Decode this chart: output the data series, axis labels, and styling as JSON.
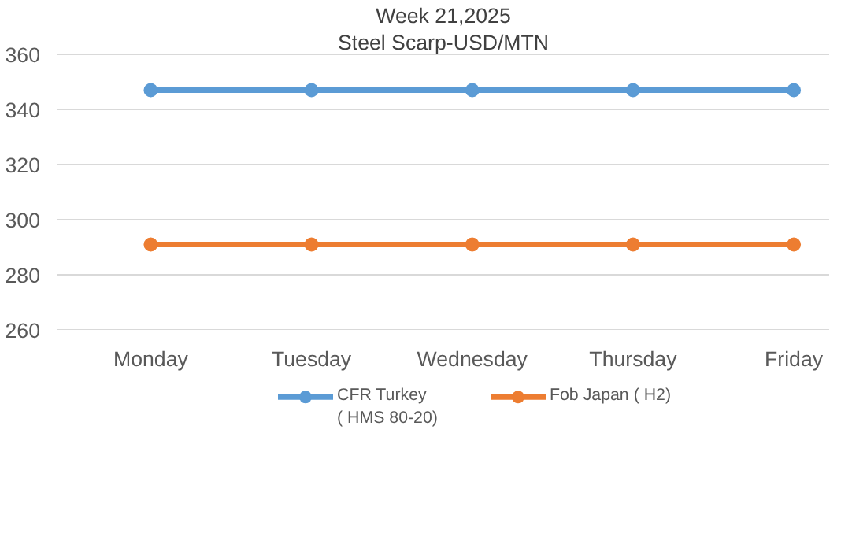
{
  "chart_data": {
    "type": "line",
    "title": "Week 21,2025",
    "subtitle": "Steel Scarp-USD/MTN",
    "categories": [
      "Monday",
      "Tuesday",
      "Wednesday",
      "Thursday",
      "Friday"
    ],
    "series": [
      {
        "name": "CFR Turkey\n( HMS 80-20)",
        "color": "#5b9bd5",
        "values": [
          347,
          347,
          347,
          347,
          347
        ]
      },
      {
        "name": "Fob Japan ( H2)",
        "color": "#ed7d31",
        "values": [
          291,
          291,
          291,
          291,
          291
        ]
      }
    ],
    "ylim": [
      260,
      360
    ],
    "yticks": [
      260,
      280,
      300,
      320,
      340,
      360
    ],
    "grid": "y",
    "legend": "bottom",
    "marker": "circle",
    "line_style": "solid"
  }
}
